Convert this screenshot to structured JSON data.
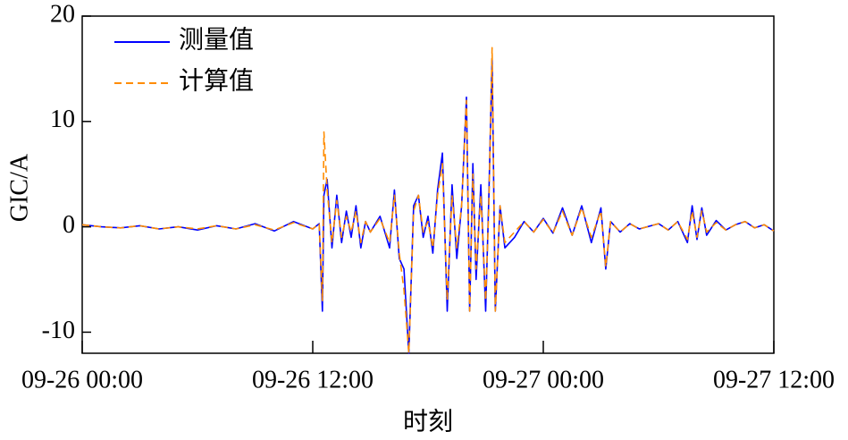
{
  "chart_data": {
    "type": "line",
    "xlabel": "时刻",
    "ylabel": "GIC/A",
    "x": [
      "09-26 00:00",
      "09-26 01:00",
      "09-26 02:00",
      "09-26 03:00",
      "09-26 04:00",
      "09-26 05:00",
      "09-26 06:00",
      "09-26 07:00",
      "09-26 08:00",
      "09-26 09:00",
      "09-26 10:00",
      "09-26 11:00",
      "09-26 12:00",
      "09-26 12:20",
      "09-26 12:30",
      "09-26 12:35",
      "09-26 12:45",
      "09-26 13:00",
      "09-26 13:15",
      "09-26 13:30",
      "09-26 13:45",
      "09-26 14:00",
      "09-26 14:15",
      "09-26 14:30",
      "09-26 14:45",
      "09-26 15:00",
      "09-26 15:30",
      "09-26 16:00",
      "09-26 16:15",
      "09-26 16:30",
      "09-26 16:45",
      "09-26 17:00",
      "09-26 17:15",
      "09-26 17:30",
      "09-26 17:45",
      "09-26 18:00",
      "09-26 18:15",
      "09-26 18:30",
      "09-26 18:45",
      "09-26 19:00",
      "09-26 19:15",
      "09-26 19:30",
      "09-26 19:45",
      "09-26 20:00",
      "09-26 20:10",
      "09-26 20:20",
      "09-26 20:30",
      "09-26 20:45",
      "09-26 21:00",
      "09-26 21:10",
      "09-26 21:20",
      "09-26 21:30",
      "09-26 21:45",
      "09-26 22:00",
      "09-26 22:30",
      "09-26 23:00",
      "09-26 23:30",
      "09-27 00:00",
      "09-27 00:30",
      "09-27 01:00",
      "09-27 01:30",
      "09-27 02:00",
      "09-27 02:30",
      "09-27 03:00",
      "09-27 03:15",
      "09-27 03:30",
      "09-27 04:00",
      "09-27 04:30",
      "09-27 05:00",
      "09-27 06:00",
      "09-27 06:30",
      "09-27 07:00",
      "09-27 07:30",
      "09-27 07:45",
      "09-27 08:00",
      "09-27 08:15",
      "09-27 08:30",
      "09-27 09:00",
      "09-27 09:30",
      "09-27 10:00",
      "09-27 10:30",
      "09-27 11:00",
      "09-27 11:30",
      "09-27 12:00"
    ],
    "series": [
      {
        "name": "测量值",
        "color": "#0000ff",
        "linestyle": "solid",
        "values": [
          0.2,
          0,
          -0.1,
          0.1,
          -0.2,
          0,
          -0.3,
          0.1,
          -0.2,
          0.3,
          -0.4,
          0.5,
          -0.2,
          0.3,
          -8,
          3,
          4.5,
          -2,
          3,
          -1.5,
          1.5,
          -1,
          2,
          -2,
          0.5,
          -0.5,
          1,
          -2,
          3.5,
          -3,
          -4,
          -12,
          2,
          3,
          -1,
          1,
          -2.5,
          3.5,
          7,
          -8,
          4,
          -3,
          2,
          12.3,
          -8,
          6,
          -5,
          4,
          -8,
          3,
          16,
          -8,
          2,
          -2,
          -1,
          0.5,
          -0.5,
          0.8,
          -0.6,
          1.8,
          -0.8,
          2,
          -1.5,
          1.8,
          -4,
          0.5,
          -0.5,
          0.3,
          -0.2,
          0.3,
          -0.3,
          0.5,
          -1.5,
          2,
          -1.2,
          1.8,
          -0.8,
          0.6,
          -0.3,
          0.2,
          0.5,
          -0.1,
          0.2,
          -0.4
        ]
      },
      {
        "name": "计算值",
        "color": "#ff8c00",
        "linestyle": "dashed",
        "values": [
          0.2,
          0,
          -0.1,
          0.1,
          -0.2,
          0,
          -0.2,
          0.1,
          -0.2,
          0.2,
          -0.3,
          0.4,
          -0.2,
          0.3,
          -7,
          9,
          3.5,
          -1.5,
          2.5,
          -1,
          1,
          -0.5,
          1.5,
          -1.5,
          0.5,
          -0.5,
          0.8,
          -1.5,
          3,
          -2.5,
          -6,
          -12,
          1.5,
          3,
          -0.5,
          0.5,
          -2,
          3,
          6,
          -7,
          3,
          -2,
          2,
          12,
          -8,
          5,
          -4,
          3,
          -7,
          2,
          17,
          -8,
          2,
          -1.5,
          -0.5,
          0.5,
          -0.5,
          0.7,
          -0.6,
          1.5,
          -0.8,
          1.8,
          -1,
          1.5,
          -3.8,
          0.5,
          -0.5,
          0.3,
          -0.2,
          0.3,
          -0.3,
          0.5,
          -1.2,
          1.5,
          -1,
          1.5,
          -0.5,
          0.4,
          -0.3,
          0.2,
          0.5,
          -0.1,
          0.2,
          -0.4
        ]
      }
    ],
    "xlim": [
      "09-26 00:00",
      "09-27 12:00"
    ],
    "xticks": [
      "09-26 00:00",
      "09-26 12:00",
      "09-27 00:00",
      "09-27 12:00"
    ],
    "ylim": [
      -12,
      20
    ],
    "yticks": [
      -10,
      0,
      10,
      20
    ],
    "legend": "upper-left",
    "grid": false
  }
}
